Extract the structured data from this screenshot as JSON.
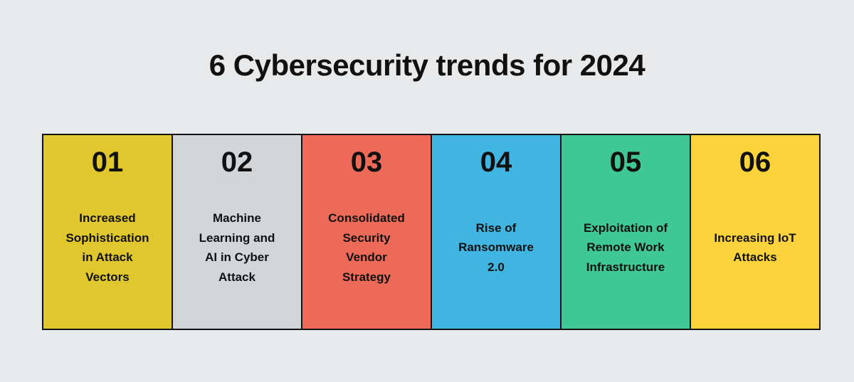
{
  "page": {
    "background": "#e8e9ea",
    "title": "6 Cybersecurity trends for 2024",
    "title_color": "#111111",
    "border_color": "#121212",
    "text_color": "#111111"
  },
  "cards": [
    {
      "number": "01",
      "text": "Increased\nSophistication\nin Attack\nVectors",
      "color": "#e0c72e"
    },
    {
      "number": "02",
      "text": "Machine\nLearning and\nAI in Cyber\nAttack",
      "color": "#d2d6d9"
    },
    {
      "number": "03",
      "text": "Consolidated\nSecurity\nVendor\nStrategy",
      "color": "#ec6a57"
    },
    {
      "number": "04",
      "text": "Rise of\nRansomware\n2.0",
      "color": "#40b5e2"
    },
    {
      "number": "05",
      "text": "Exploitation of\nRemote Work\nInfrastructure",
      "color": "#3fc795"
    },
    {
      "number": "06",
      "text": "Increasing IoT\nAttacks",
      "color": "#fdd33c"
    }
  ]
}
